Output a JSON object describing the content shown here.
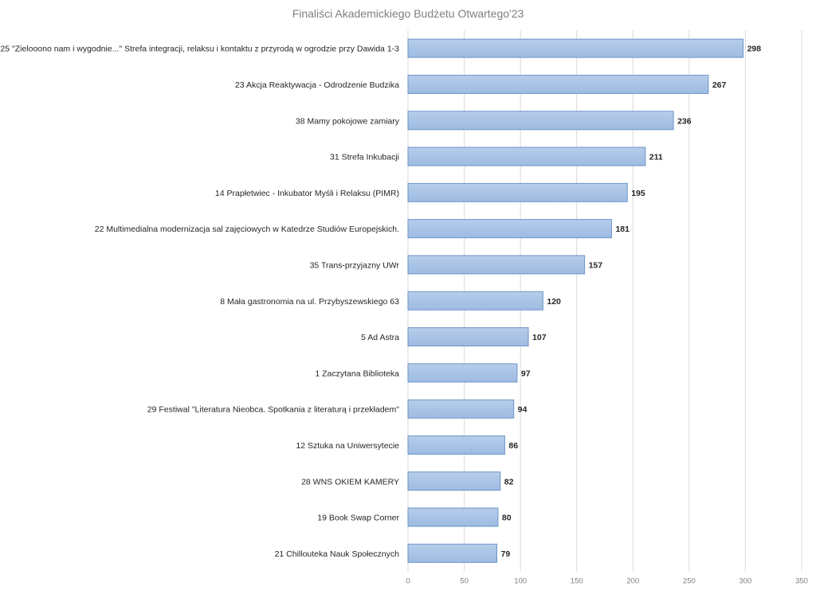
{
  "chart_data": {
    "type": "bar",
    "orientation": "horizontal",
    "title": "Finaliści Akademickiego Budżetu Otwartego'23",
    "xlabel": "",
    "ylabel": "",
    "xlim": [
      0,
      350
    ],
    "x_ticks": [
      0,
      50,
      100,
      150,
      200,
      250,
      300,
      350
    ],
    "grid": true,
    "legend": "none",
    "categories": [
      "25 \"Zielooono nam i wygodnie...\" Strefa integracji, relaksu i kontaktu z przyrodą w ogrodzie przy Dawida 1-3",
      "23 Akcja Reaktywacja - Odrodzenie Budzika",
      "38 Mamy pokojowe zamiary",
      "31 Strefa Inkubacji",
      "14 Prapłetwiec - Inkubator Myśli i Relaksu (PIMR)",
      "22 Multimedialna modernizacja sal zajęciowych w Katedrze Studiów Europejskich.",
      "35 Trans-przyjazny UWr",
      "8 Mała gastronomia na ul. Przybyszewskiego 63",
      "5 Ad Astra",
      "1 Zaczytana Biblioteka",
      "29 Festiwal \"Literatura Nieobca. Spotkania z literaturą i przekładem\"",
      "12 Sztuka na Uniwersytecie",
      "28 WNS OKIEM KAMERY",
      "19 Book Swap Corner",
      "21 Chillouteka Nauk Społecznych"
    ],
    "values": [
      298,
      267,
      236,
      211,
      195,
      181,
      157,
      120,
      107,
      97,
      94,
      86,
      82,
      80,
      79
    ],
    "colors": {
      "bar_fill_top": "#b7cdea",
      "bar_fill_bottom": "#9dbbe2",
      "bar_stroke": "#6d95c8",
      "grid": "#d9d9d9",
      "title": "#7f7f7f",
      "tick": "#7f7f7f",
      "label": "#262626"
    }
  }
}
